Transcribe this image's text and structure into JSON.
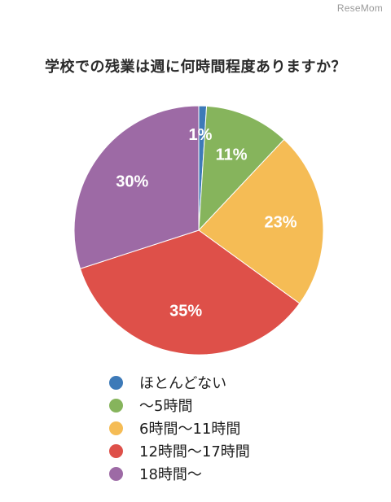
{
  "watermark": "ReseMom",
  "chart_data": {
    "type": "pie",
    "title": "学校での残業は週に何時間程度ありますか？",
    "categories": [
      "ほとんどない",
      "〜5時間",
      "6時間〜11時間",
      "12時間〜17時間",
      "18時間〜"
    ],
    "values": [
      1,
      11,
      23,
      35,
      30
    ],
    "value_labels": [
      "1%",
      "11%",
      "23%",
      "35%",
      "30%"
    ],
    "colors": [
      "#3d7ab8",
      "#86b45c",
      "#f5bc55",
      "#de5049",
      "#9d6aa5"
    ],
    "legend_position": "bottom"
  }
}
